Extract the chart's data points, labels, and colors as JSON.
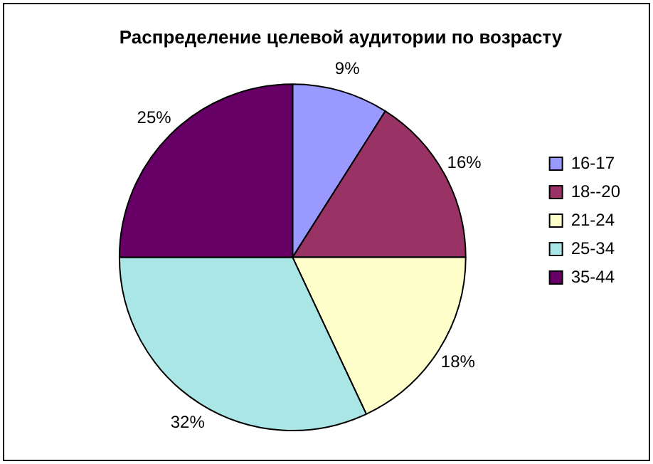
{
  "chart_data": {
    "type": "pie",
    "title": "Распределение целевой аудитории по возрасту",
    "categories": [
      "16-17",
      "18--20",
      "21-24",
      "25-34",
      "35-44"
    ],
    "values": [
      9,
      16,
      18,
      32,
      25
    ],
    "value_labels": [
      "9%",
      "16%",
      "18%",
      "32%",
      "25%"
    ],
    "colors": [
      "#9999ff",
      "#993366",
      "#ffffcc",
      "#aae6e6",
      "#660066"
    ],
    "legend": "right"
  }
}
